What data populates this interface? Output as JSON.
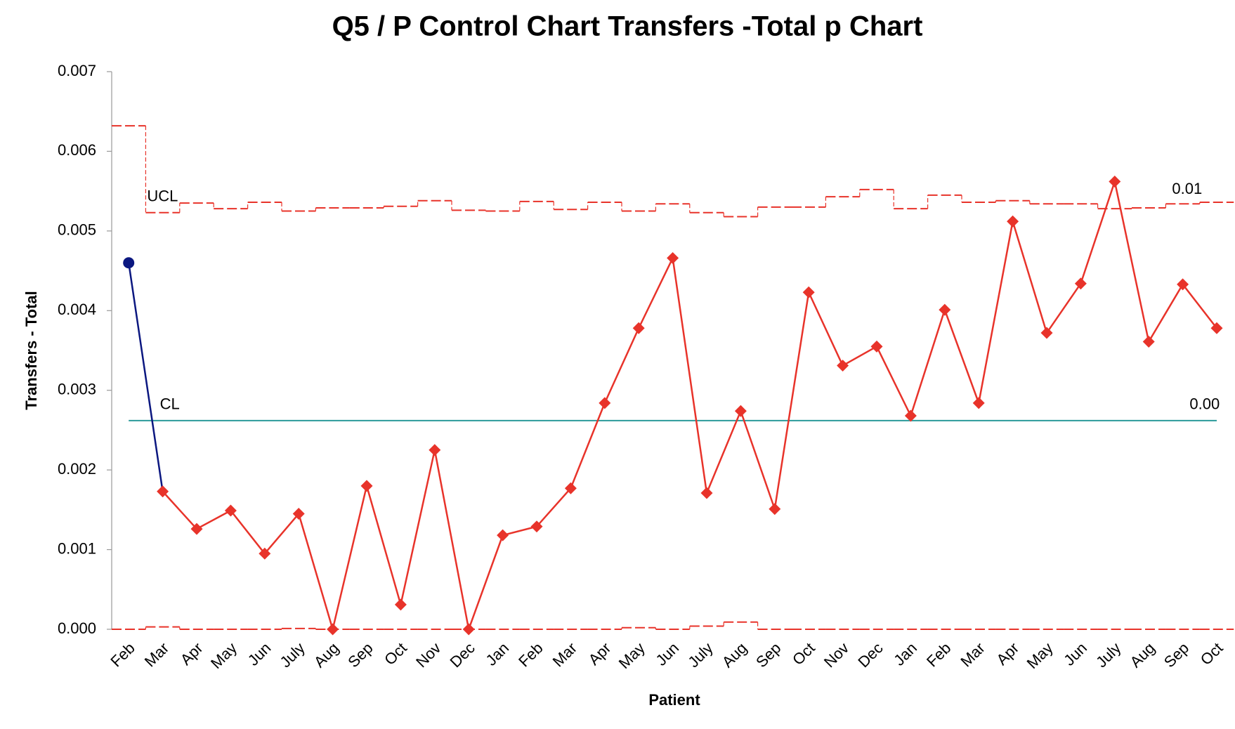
{
  "chart_data": {
    "type": "p_chart",
    "title": "Q5 / P Control Chart Transfers -Total p Chart",
    "x_label": "Patient",
    "y_label": "Transfers  - Total",
    "categories": [
      "Feb",
      "Mar",
      "Apr",
      "May",
      "Jun",
      "July",
      "Aug",
      "Sep",
      "Oct",
      "Nov",
      "Dec",
      "Jan",
      "Feb",
      "Mar",
      "Apr",
      "May",
      "Jun",
      "July",
      "Aug",
      "Sep",
      "Oct",
      "Nov",
      "Dec",
      "Jan",
      "Feb",
      "Mar",
      "Apr",
      "May",
      "Jun",
      "July",
      "Aug",
      "Sep",
      "Oct"
    ],
    "series": [
      {
        "color": "#e8332a",
        "start_color": "#0b1780",
        "values": [
          0.0046,
          0.00173,
          0.00126,
          0.00149,
          0.00095,
          0.00145,
          0,
          0.0018,
          0.00031,
          0.00225,
          0,
          0.00118,
          0.00129,
          0.00177,
          0.00284,
          0.00378,
          0.00466,
          0.00171,
          0.00274,
          0.00151,
          0.00423,
          0.00331,
          0.00355,
          0.00268,
          0.00401,
          0.00284,
          0.00512,
          0.00372,
          0.00434,
          0.00562,
          0.00361,
          0.00433,
          0.00378
        ]
      }
    ],
    "control_limits": {
      "color": "#e8332a",
      "cl": {
        "name": "CL",
        "value": 0.00262,
        "value_label": "0.00",
        "color": "#2a9a9a"
      },
      "ucl": {
        "name": "UCL",
        "value_label": "0.01",
        "values": [
          0.00632,
          0.00523,
          0.00535,
          0.00528,
          0.00536,
          0.00525,
          0.00529,
          0.00529,
          0.00531,
          0.00538,
          0.00526,
          0.00525,
          0.00537,
          0.00527,
          0.00536,
          0.00525,
          0.00534,
          0.00523,
          0.00518,
          0.0053,
          0.0053,
          0.00543,
          0.00552,
          0.00528,
          0.00545,
          0.00536,
          0.00538,
          0.00534,
          0.00534,
          0.00528,
          0.00529,
          0.00534,
          0.00536
        ]
      },
      "lcl": {
        "values": [
          0,
          3e-05,
          0,
          0,
          0,
          1e-05,
          0,
          0,
          0,
          0,
          0,
          0,
          0,
          0,
          0,
          2e-05,
          0,
          4e-05,
          9e-05,
          0,
          0,
          0,
          0,
          0,
          0,
          0,
          0,
          0,
          0,
          0,
          0,
          0,
          0
        ]
      }
    },
    "ylim": [
      0,
      0.007
    ],
    "yticks": [
      {
        "value": 0,
        "label": "0.000"
      },
      {
        "value": 0.001,
        "label": "0.001"
      },
      {
        "value": 0.002,
        "label": "0.002"
      },
      {
        "value": 0.003,
        "label": "0.003"
      },
      {
        "value": 0.004,
        "label": "0.004"
      },
      {
        "value": 0.005,
        "label": "0.005"
      },
      {
        "value": 0.006,
        "label": "0.006"
      },
      {
        "value": 0.007,
        "label": "0.007"
      }
    ]
  }
}
